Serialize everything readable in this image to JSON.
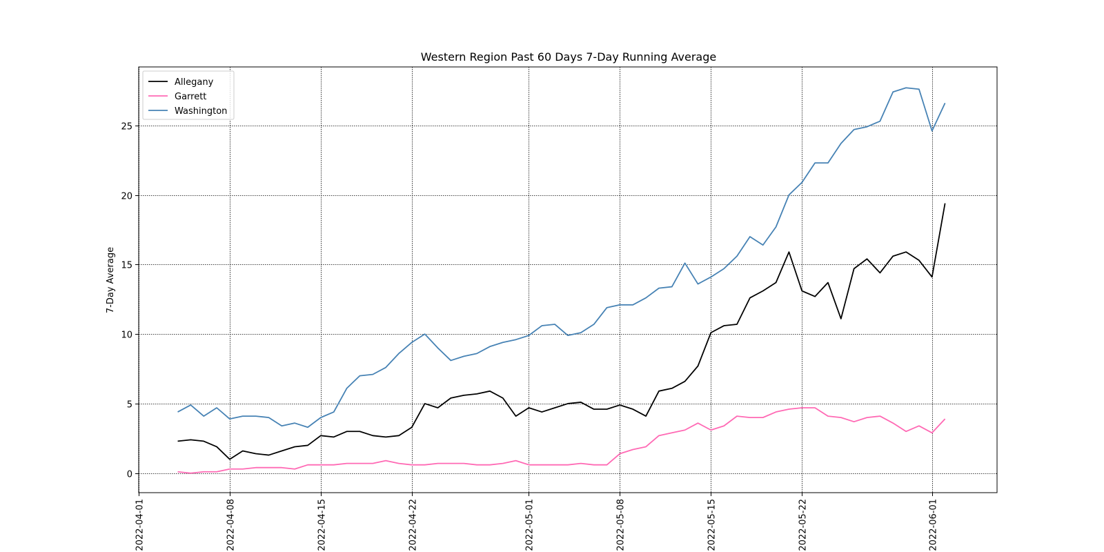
{
  "chart_data": {
    "type": "line",
    "title": "Western Region Past 60 Days 7-Day Running Average",
    "xlabel": "",
    "ylabel": "7-Day Average",
    "x_start": "2022-04-04",
    "x_end": "2022-06-02",
    "xlim": [
      "2022-04-01",
      "2022-06-06"
    ],
    "ylim": [
      -1.4,
      29.2
    ],
    "x_ticks": [
      "2022-04-01",
      "2022-04-08",
      "2022-04-15",
      "2022-04-22",
      "2022-05-01",
      "2022-05-08",
      "2022-05-15",
      "2022-05-22",
      "2022-06-01"
    ],
    "y_ticks": [
      0,
      5,
      10,
      15,
      20,
      25
    ],
    "grid": true,
    "legend_position": "top-left",
    "series": [
      {
        "name": "Allegany",
        "color": "#000000",
        "values": [
          2.3,
          2.4,
          2.3,
          1.9,
          1.0,
          1.6,
          1.4,
          1.3,
          1.6,
          1.9,
          2.0,
          2.7,
          2.6,
          3.0,
          3.0,
          2.7,
          2.6,
          2.7,
          3.3,
          5.0,
          4.7,
          5.4,
          5.6,
          5.7,
          5.9,
          5.4,
          4.1,
          4.7,
          4.4,
          4.7,
          5.0,
          5.1,
          4.6,
          4.6,
          4.9,
          4.6,
          4.1,
          5.9,
          6.1,
          6.6,
          7.7,
          10.1,
          10.6,
          10.7,
          12.6,
          13.1,
          13.7,
          15.9,
          13.1,
          12.7,
          13.7,
          11.1,
          14.7,
          15.4,
          14.4,
          15.6,
          15.9,
          15.3,
          14.1,
          19.4
        ]
      },
      {
        "name": "Garrett",
        "color": "#ff69b4",
        "values": [
          0.1,
          0.0,
          0.1,
          0.1,
          0.3,
          0.3,
          0.4,
          0.4,
          0.4,
          0.3,
          0.6,
          0.6,
          0.6,
          0.7,
          0.7,
          0.7,
          0.9,
          0.7,
          0.6,
          0.6,
          0.7,
          0.7,
          0.7,
          0.6,
          0.6,
          0.7,
          0.9,
          0.6,
          0.6,
          0.6,
          0.6,
          0.7,
          0.6,
          0.6,
          1.4,
          1.7,
          1.9,
          2.7,
          2.9,
          3.1,
          3.6,
          3.1,
          3.4,
          4.1,
          4.0,
          4.0,
          4.4,
          4.6,
          4.7,
          4.7,
          4.1,
          4.0,
          3.7,
          4.0,
          4.1,
          3.6,
          3.0,
          3.4,
          2.9,
          3.9
        ]
      },
      {
        "name": "Washington",
        "color": "#4682b4",
        "values": [
          4.4,
          4.9,
          4.1,
          4.7,
          3.9,
          4.1,
          4.1,
          4.0,
          3.4,
          3.6,
          3.3,
          4.0,
          4.4,
          6.1,
          7.0,
          7.1,
          7.6,
          8.6,
          9.4,
          10.0,
          9.0,
          8.1,
          8.4,
          8.6,
          9.1,
          9.4,
          9.6,
          9.9,
          10.6,
          10.7,
          9.9,
          10.1,
          10.7,
          11.9,
          12.1,
          12.1,
          12.6,
          13.3,
          13.4,
          15.1,
          13.6,
          14.1,
          14.7,
          15.6,
          17.0,
          16.4,
          17.7,
          20.0,
          20.9,
          22.3,
          22.3,
          23.7,
          24.7,
          24.9,
          25.3,
          27.4,
          27.7,
          27.6,
          24.6,
          26.6
        ]
      }
    ]
  }
}
